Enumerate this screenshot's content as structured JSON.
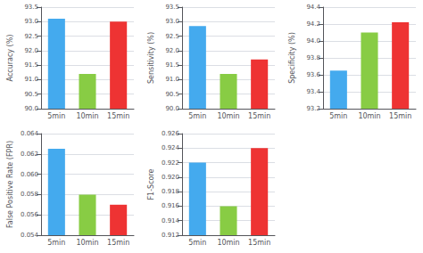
{
  "chart_data": [
    {
      "type": "bar",
      "ylabel": "Accuracy (%)",
      "categories": [
        "5min",
        "10min",
        "15min"
      ],
      "values": [
        93.1,
        91.2,
        93.0
      ],
      "colors": [
        "#44AAEE",
        "#88CC44",
        "#EE3333"
      ],
      "ylim": [
        90.0,
        93.5
      ],
      "yticks": [
        {
          "value": 90.0,
          "label": "90.0"
        },
        90.5,
        {
          "value": 91.0,
          "label": "91.0"
        },
        91.5,
        {
          "value": 92.0,
          "label": "92.0"
        },
        92.5,
        {
          "value": 93.0,
          "label": "93.0"
        },
        93.5
      ],
      "grid": true
    },
    {
      "type": "bar",
      "ylabel": "Sensitivity (%)",
      "categories": [
        "5min",
        "10min",
        "15min"
      ],
      "values": [
        92.85,
        91.2,
        91.7
      ],
      "colors": [
        "#44AAEE",
        "#88CC44",
        "#EE3333"
      ],
      "ylim": [
        90.0,
        93.5
      ],
      "yticks": [
        {
          "value": 90.0,
          "label": "90.0"
        },
        90.5,
        {
          "value": 91.0,
          "label": "91.0"
        },
        91.5,
        {
          "value": 92.0,
          "label": "92.0"
        },
        92.5,
        {
          "value": 93.0,
          "label": "93.0"
        },
        93.5
      ],
      "grid": true
    },
    {
      "type": "bar",
      "ylabel": "Specificity (%)",
      "categories": [
        "5min",
        "10min",
        "15min"
      ],
      "values": [
        93.65,
        94.1,
        94.22
      ],
      "colors": [
        "#44AAEE",
        "#88CC44",
        "#EE3333"
      ],
      "ylim": [
        93.2,
        94.4
      ],
      "yticks": [
        93.2,
        93.4,
        93.6,
        93.8,
        {
          "value": 94.0,
          "label": "94.0"
        },
        94.2,
        94.4
      ],
      "grid": true
    },
    {
      "type": "bar",
      "ylabel": "False Positive Rate (FPR)",
      "categories": [
        "5min",
        "10min",
        "15min"
      ],
      "values": [
        0.0625,
        0.058,
        0.057
      ],
      "colors": [
        "#44AAEE",
        "#88CC44",
        "#EE3333"
      ],
      "ylim": [
        0.054,
        0.064
      ],
      "yticks": [
        0.054,
        0.056,
        0.058,
        {
          "value": 0.06,
          "label": "0.060"
        },
        0.062,
        0.064
      ],
      "grid": true
    },
    {
      "type": "bar",
      "ylabel": "F1-Score",
      "categories": [
        "5min",
        "10min",
        "15min"
      ],
      "values": [
        0.922,
        0.916,
        0.924
      ],
      "colors": [
        "#44AAEE",
        "#88CC44",
        "#EE3333"
      ],
      "ylim": [
        0.912,
        0.926
      ],
      "yticks": [
        0.912,
        0.914,
        0.916,
        0.918,
        {
          "value": 0.92,
          "label": "0.920"
        },
        0.922,
        0.924,
        0.926
      ],
      "grid": true
    }
  ]
}
